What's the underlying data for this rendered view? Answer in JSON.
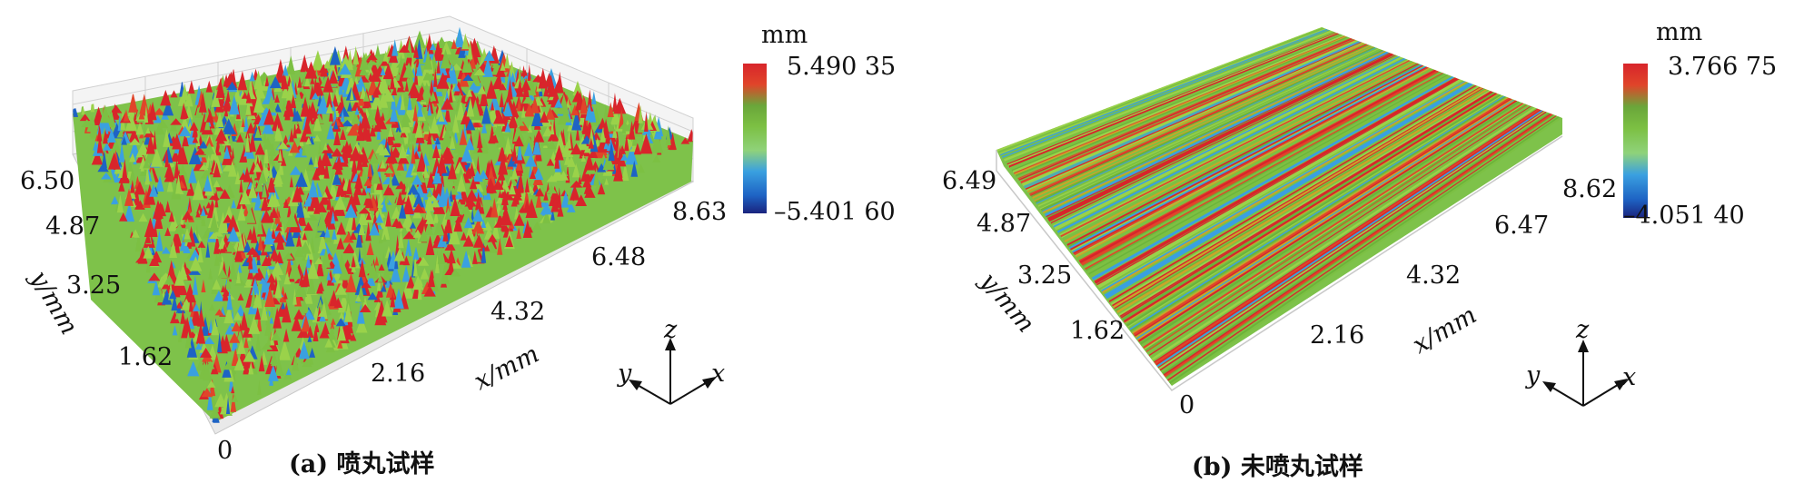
{
  "chart_data": [
    {
      "type": "heatmap",
      "caption": "(a) 喷丸试样",
      "colorbar": {
        "unit": "mm",
        "max_label": "5.490 35",
        "min_label": "–5.401 60",
        "max": 5.49035,
        "min": -5.4016
      },
      "x_axis": {
        "label": "x/mm",
        "ticks": [
          "2.16",
          "4.32",
          "6.48",
          "8.63"
        ]
      },
      "y_axis": {
        "label": "y/mm",
        "ticks": [
          "1.62",
          "3.25",
          "4.87",
          "6.50"
        ]
      },
      "origin_label": "0",
      "surface_pattern": "random-peaks",
      "triad": {
        "x": "x",
        "y": "y",
        "z": "z"
      }
    },
    {
      "type": "heatmap",
      "caption": "(b) 未喷丸试样",
      "colorbar": {
        "unit": "mm",
        "max_label": "3.766 75",
        "min_label": "–4.051 40",
        "max": 3.76675,
        "min": -4.0514
      },
      "x_axis": {
        "label": "x/mm",
        "ticks": [
          "2.16",
          "4.32",
          "6.47",
          "8.62"
        ]
      },
      "y_axis": {
        "label": "y/mm",
        "ticks": [
          "1.62",
          "3.25",
          "4.87",
          "6.49"
        ]
      },
      "origin_label": "0",
      "surface_pattern": "parallel-grooves",
      "triad": {
        "x": "x",
        "y": "y",
        "z": "z"
      }
    }
  ],
  "colormap": [
    "#1a237e",
    "#1e63c4",
    "#3aa0e0",
    "#7fd0c8",
    "#9ad24a",
    "#6bb33a",
    "#c9a52a",
    "#e0452a",
    "#d8252b"
  ]
}
